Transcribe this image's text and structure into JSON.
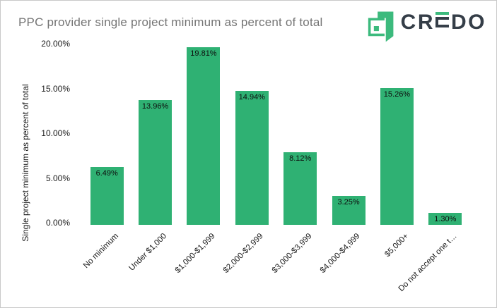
{
  "header": {
    "logo": {
      "brand": "CREDO",
      "text_left": "CR",
      "text_right": "DO",
      "icon": "credo-bracket-ribbon-icon",
      "green": "#3cba7d",
      "text_color": "#353e48"
    }
  },
  "chart_data": {
    "type": "bar",
    "title": "PPC provider single project minimum as percent of total",
    "categories": [
      "No minimum",
      "Under $1,000",
      "$1,000-$1,999",
      "$2,000-$2,999",
      "$3,000-$3,999",
      "$4,000-$4,999",
      "$5,000+",
      "Do not accept one t…"
    ],
    "values": [
      6.49,
      13.96,
      19.81,
      14.94,
      8.12,
      3.25,
      15.26,
      1.3
    ],
    "value_labels": [
      "6.49%",
      "13.96%",
      "19.81%",
      "14.94%",
      "8.12%",
      "3.25%",
      "15.26%",
      "1.30%"
    ],
    "xlabel": "",
    "ylabel": "Single project minimum as percent of total",
    "ylim": [
      0,
      20
    ],
    "yticks": [
      0,
      5,
      10,
      15,
      20
    ],
    "ytick_labels": [
      "0.00%",
      "5.00%",
      "10.00%",
      "15.00%",
      "20.00%"
    ],
    "bar_color": "#2fb173",
    "grid": false,
    "legend": false
  }
}
